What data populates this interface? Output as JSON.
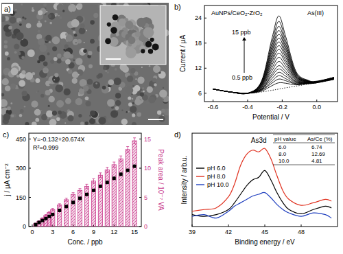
{
  "chart_data": [
    {
      "type": "image",
      "title": "a)"
    },
    {
      "type": "line",
      "title": "b)",
      "x_label": "Potential / V",
      "y_label": "Current / μA",
      "annotations": [
        "AuNPs/CeO₂-ZrO₂",
        "As(III)",
        "15 ppb",
        "0.5 ppb"
      ],
      "x": [
        -0.6,
        -0.5,
        -0.4,
        -0.32,
        -0.26,
        -0.22,
        -0.18,
        -0.12,
        -0.05,
        0,
        0.1
      ],
      "xlim": [
        -0.65,
        0.12
      ],
      "xticks": [
        -0.6,
        -0.4,
        -0.2,
        {
          "value": 0,
          "label": "0.0"
        }
      ],
      "ylim": [
        4,
        27
      ],
      "yticks": [
        6,
        12,
        18,
        24
      ],
      "series": [
        {
          "color": "#000000",
          "line_style": "dotted",
          "values": [
            7.0,
            6.3,
            6.0,
            6.3,
            6.7,
            7.0,
            7.3,
            7.7,
            8.2,
            8.5,
            9.3
          ]
        },
        {
          "color": "#000000",
          "values": [
            7.0,
            6.3,
            6.0,
            6.5,
            7.8,
            8.5,
            8.4,
            8.0,
            8.3,
            8.5,
            9.3
          ]
        },
        {
          "color": "#000000",
          "values": [
            7.0,
            6.3,
            6.0,
            6.7,
            8.4,
            9.4,
            9.0,
            8.2,
            8.3,
            8.5,
            9.4
          ]
        },
        {
          "color": "#000000",
          "values": [
            7.0,
            6.3,
            6.0,
            6.8,
            8.9,
            10.2,
            9.5,
            8.3,
            8.4,
            8.6,
            9.4
          ]
        },
        {
          "color": "#000000",
          "values": [
            7.0,
            6.3,
            6.0,
            6.9,
            9.5,
            11.0,
            10.1,
            8.5,
            8.4,
            8.6,
            9.4
          ]
        },
        {
          "color": "#000000",
          "values": [
            7.0,
            6.3,
            6.0,
            7.0,
            10.1,
            11.8,
            10.7,
            8.7,
            8.4,
            8.6,
            9.4
          ]
        },
        {
          "color": "#000000",
          "values": [
            7.0,
            6.3,
            6.0,
            7.1,
            10.6,
            12.6,
            11.2,
            8.8,
            8.5,
            8.6,
            9.5
          ]
        },
        {
          "color": "#000000",
          "values": [
            7.0,
            6.3,
            6.0,
            7.3,
            11.3,
            13.6,
            11.9,
            9.0,
            8.5,
            8.6,
            9.5
          ]
        },
        {
          "color": "#000000",
          "values": [
            7.0,
            6.3,
            6.0,
            7.4,
            12.0,
            14.6,
            12.6,
            9.2,
            8.6,
            8.7,
            9.5
          ]
        },
        {
          "color": "#000000",
          "values": [
            7.0,
            6.3,
            6.0,
            7.6,
            12.7,
            15.6,
            13.3,
            9.4,
            8.6,
            8.7,
            9.6
          ]
        },
        {
          "color": "#000000",
          "values": [
            7.0,
            6.3,
            6.0,
            7.7,
            13.4,
            16.5,
            13.9,
            9.6,
            8.7,
            8.7,
            9.6
          ]
        },
        {
          "color": "#000000",
          "values": [
            7.0,
            6.3,
            6.0,
            7.9,
            14.0,
            17.4,
            14.6,
            9.8,
            8.7,
            8.7,
            9.6
          ]
        },
        {
          "color": "#000000",
          "values": [
            7.0,
            6.3,
            6.0,
            8.0,
            14.6,
            18.3,
            15.2,
            10.0,
            8.8,
            8.7,
            9.6
          ]
        },
        {
          "color": "#000000",
          "values": [
            7.0,
            6.3,
            6.0,
            8.1,
            15.2,
            19.2,
            15.8,
            10.1,
            8.8,
            8.7,
            9.7
          ]
        },
        {
          "color": "#000000",
          "values": [
            7.0,
            6.3,
            6.0,
            8.3,
            15.9,
            20.1,
            16.5,
            10.3,
            8.9,
            8.8,
            9.7
          ]
        },
        {
          "color": "#000000",
          "values": [
            7.0,
            6.3,
            6.0,
            8.4,
            16.5,
            21.0,
            17.1,
            10.5,
            8.9,
            8.8,
            9.7
          ]
        },
        {
          "color": "#000000",
          "values": [
            7.0,
            6.3,
            6.0,
            8.6,
            17.2,
            22.0,
            17.8,
            10.7,
            8.9,
            8.8,
            9.8
          ]
        },
        {
          "color": "#000000",
          "values": [
            7.0,
            6.3,
            6.0,
            8.7,
            18.0,
            23.2,
            18.6,
            10.9,
            9.0,
            8.8,
            9.8
          ]
        },
        {
          "color": "#000000",
          "values": [
            7.0,
            6.3,
            6.0,
            8.9,
            19.0,
            24.5,
            19.6,
            11.2,
            9.1,
            8.9,
            9.8
          ]
        }
      ]
    },
    {
      "type": "bar",
      "title": "c)",
      "x_label": "Conc. / ppb",
      "y_label": "j / μA cm⁻²",
      "y2_label": "Peak area / 10⁻⁷ VA",
      "annotations": [
        "Y=-0.132+20.674X",
        "R²=0.999"
      ],
      "x": [
        0.5,
        1,
        1.5,
        2,
        2.5,
        3,
        4,
        5,
        6,
        7,
        8,
        9,
        10,
        11,
        12,
        13,
        14,
        15
      ],
      "xlim": [
        -0.5,
        16
      ],
      "xticks": [
        0,
        3,
        6,
        9,
        12,
        15
      ],
      "ylim": [
        0,
        480
      ],
      "yticks": [
        0,
        150,
        300,
        450
      ],
      "y2lim": [
        0,
        16
      ],
      "y2ticks": [
        0,
        5,
        10,
        15
      ],
      "series": [
        {
          "type": "bar",
          "axis": "y2",
          "color": "#c8378a",
          "values": [
            0.5,
            0.9,
            1.4,
            1.9,
            2.4,
            2.9,
            3.7,
            4.6,
            5.5,
            6.2,
            6.9,
            7.8,
            8.8,
            9.7,
            10.6,
            11.6,
            13.2,
            14.7
          ],
          "errors": [
            0.1,
            0.1,
            0.1,
            0.15,
            0.15,
            0.2,
            0.2,
            0.25,
            0.3,
            0.3,
            0.35,
            0.4,
            0.4,
            0.45,
            0.45,
            0.5,
            0.5,
            0.5
          ]
        },
        {
          "type": "scatter",
          "marker": "square",
          "color": "#000000",
          "values": [
            10,
            21,
            31,
            41,
            52,
            62,
            83,
            103,
            124,
            145,
            165,
            186,
            207,
            227,
            248,
            269,
            289,
            310
          ]
        }
      ]
    },
    {
      "type": "line",
      "title": "d)",
      "x_label": "Binding energy / eV",
      "y_label": "Intensity / arb.u.",
      "annotations": [
        "As3d"
      ],
      "x": [
        39,
        40,
        41,
        42,
        42.5,
        43,
        43.5,
        44,
        44.5,
        45,
        45.5,
        46,
        46.5,
        47,
        48,
        49,
        50,
        50.5
      ],
      "xlim": [
        39,
        51
      ],
      "xticks": [
        39,
        42,
        45,
        48
      ],
      "ylim": [
        0,
        110
      ],
      "tick_labels": "x",
      "legend": "center left",
      "series": [
        {
          "name": "pH 6.0",
          "color": "#000000",
          "values": [
            14,
            12,
            14,
            20,
            28,
            38,
            48,
            55,
            58,
            66,
            55,
            40,
            28,
            20,
            15,
            20,
            24,
            22
          ]
        },
        {
          "name": "pH 8.0",
          "color": "#e0301e",
          "values": [
            18,
            20,
            22,
            35,
            50,
            72,
            85,
            90,
            88,
            92,
            80,
            60,
            42,
            32,
            25,
            28,
            32,
            30
          ]
        },
        {
          "name": "pH 10.0",
          "color": "#1f3fbf",
          "values": [
            12,
            14,
            10,
            18,
            24,
            28,
            32,
            36,
            38,
            40,
            34,
            26,
            20,
            16,
            12,
            16,
            14,
            10
          ]
        }
      ],
      "table": {
        "header": [
          "pH value",
          "As/Ce (%)"
        ],
        "rows": [
          [
            "6.0",
            "6.74"
          ],
          [
            "8.0",
            "12.69"
          ],
          [
            "10.0",
            "4.81"
          ]
        ]
      }
    }
  ]
}
